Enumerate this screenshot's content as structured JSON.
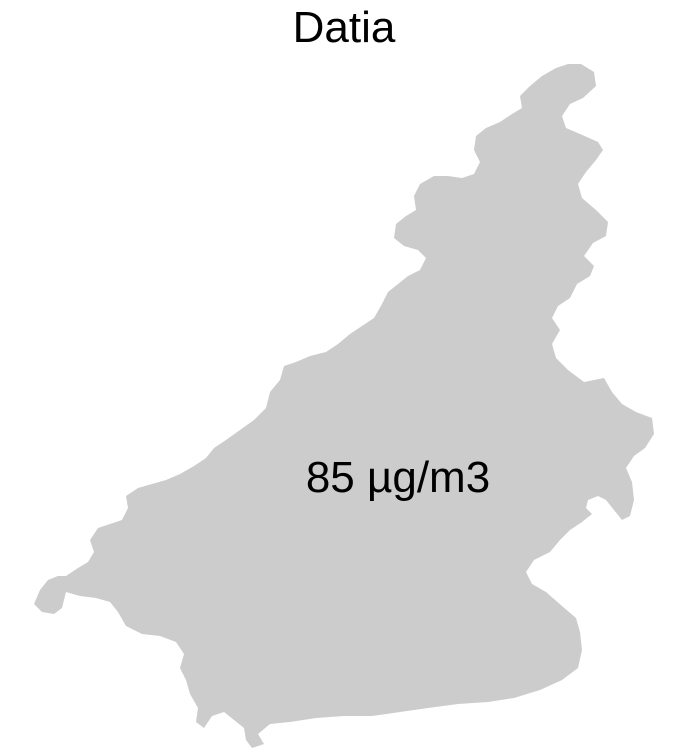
{
  "map": {
    "title": "Datia",
    "region_fill": "#cccccc",
    "value_label": "85 µg/m3"
  }
}
